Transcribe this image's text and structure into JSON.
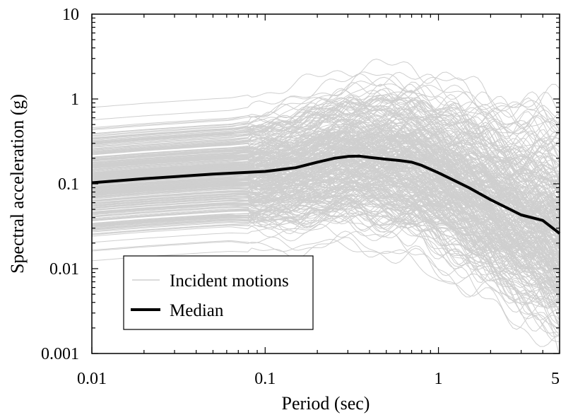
{
  "chart_data": {
    "type": "line",
    "title": "",
    "xlabel": "Period (sec)",
    "ylabel": "Spectral acceleration (g)",
    "x_scale": "log",
    "y_scale": "log",
    "xlim": [
      0.01,
      5
    ],
    "ylim": [
      0.001,
      10
    ],
    "x_ticks": [
      0.01,
      0.1,
      1,
      5
    ],
    "x_tick_labels": [
      "0.01",
      "0.1",
      "1",
      "5"
    ],
    "y_ticks": [
      0.001,
      0.01,
      0.1,
      1,
      10
    ],
    "y_tick_labels": [
      "0.001",
      "0.01",
      "0.1",
      "1",
      "10"
    ],
    "grid": false,
    "legend": {
      "placement": "bottom-left",
      "entries": [
        "Incident motions",
        "Median"
      ]
    },
    "series": [
      {
        "name": "Incident motions",
        "color": "#cfcfcf",
        "note_count": 300
      },
      {
        "name": "Median",
        "color": "#000000",
        "x": [
          0.01,
          0.02,
          0.05,
          0.1,
          0.15,
          0.2,
          0.25,
          0.3,
          0.35,
          0.4,
          0.5,
          0.6,
          0.7,
          0.8,
          1.0,
          1.5,
          2.0,
          3.0,
          4.0,
          5.0
        ],
        "values": [
          0.103,
          0.115,
          0.13,
          0.14,
          0.155,
          0.18,
          0.2,
          0.21,
          0.212,
          0.205,
          0.195,
          0.188,
          0.18,
          0.165,
          0.135,
          0.09,
          0.065,
          0.043,
          0.037,
          0.026
        ]
      }
    ]
  }
}
